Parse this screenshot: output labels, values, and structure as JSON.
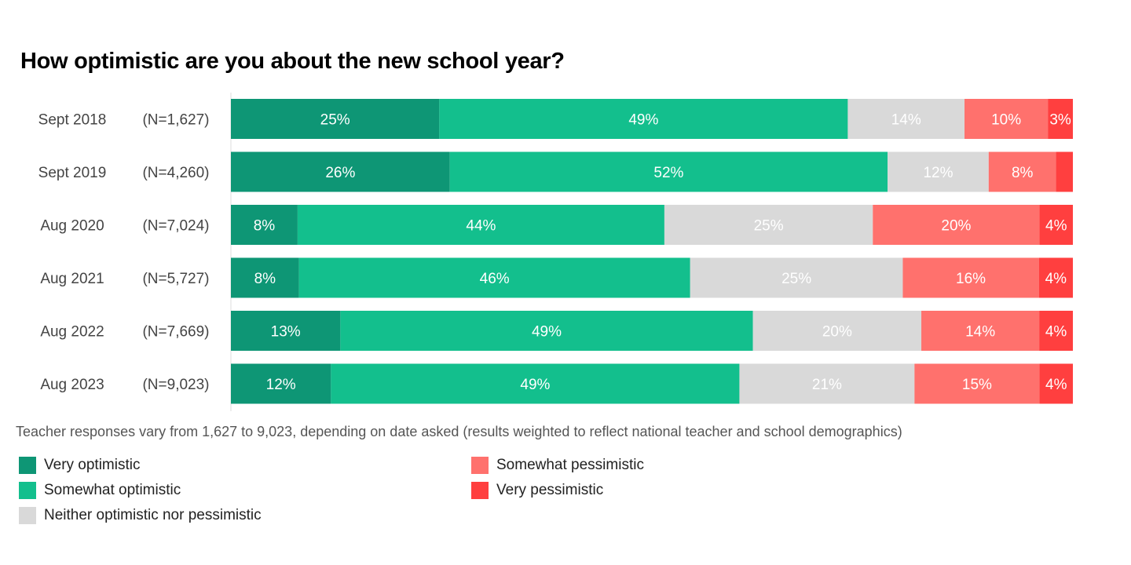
{
  "chart_data": {
    "type": "bar",
    "orientation": "horizontal",
    "stacked": true,
    "title": "How optimistic are you about the new school year?",
    "categories": [
      "Sept 2018",
      "Sept 2019",
      "Aug 2020",
      "Aug 2021",
      "Aug 2022",
      "Aug 2023"
    ],
    "sample_sizes": [
      "(N=1,627)",
      "(N=4,260)",
      "(N=7,024)",
      "(N=5,727)",
      "(N=7,669)",
      "(N=9,023)"
    ],
    "series": [
      {
        "name": "Very optimistic",
        "color": "#0e9675",
        "values": [
          25,
          26,
          8,
          8,
          13,
          12
        ],
        "labels": [
          "25%",
          "26%",
          "8%",
          "8%",
          "13%",
          "12%"
        ]
      },
      {
        "name": "Somewhat optimistic",
        "color": "#13bf8d",
        "values": [
          49,
          52,
          44,
          46,
          49,
          49
        ],
        "labels": [
          "49%",
          "52%",
          "44%",
          "46%",
          "49%",
          "49%"
        ]
      },
      {
        "name": "Neither optimistic nor pessimistic",
        "color": "#d9d9d9",
        "values": [
          14,
          12,
          25,
          25,
          20,
          21
        ],
        "labels": [
          "14%",
          "12%",
          "25%",
          "25%",
          "20%",
          "21%"
        ]
      },
      {
        "name": "Somewhat pessimistic",
        "color": "#ff716d",
        "values": [
          10,
          8,
          20,
          16,
          14,
          15
        ],
        "labels": [
          "10%",
          "8%",
          "20%",
          "16%",
          "14%",
          "15%"
        ]
      },
      {
        "name": "Very pessimistic",
        "color": "#ff3f3f",
        "values": [
          3,
          2,
          4,
          4,
          4,
          4
        ],
        "labels": [
          "3%",
          "",
          "4%",
          "4%",
          "4%",
          "4%"
        ]
      }
    ],
    "note": "Teacher responses vary from 1,627 to 9,023, depending on date asked (results weighted to reflect national teacher and school demographics)",
    "legend_position": "bottom-left"
  }
}
